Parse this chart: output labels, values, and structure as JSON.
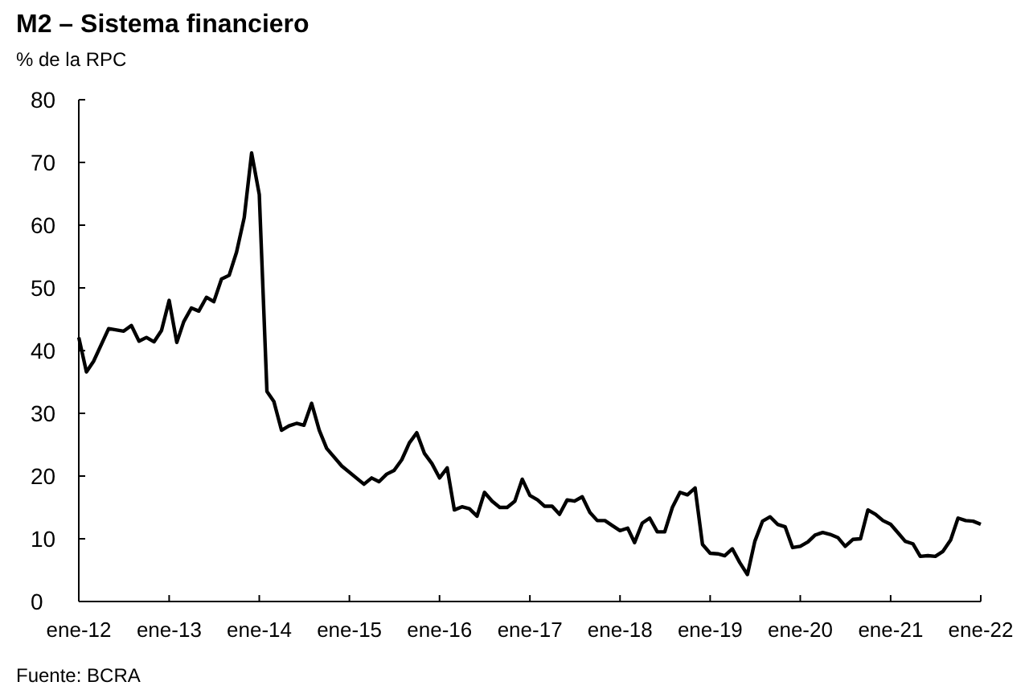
{
  "chart_data": {
    "type": "line",
    "title": "M2 – Sistema financiero",
    "ylabel": "% de la RPC",
    "annotations": [
      "Fuente: BCRA"
    ],
    "x": [
      "2012-01",
      "2012-02",
      "2012-03",
      "2012-05",
      "2012-07",
      "2012-08",
      "2012-09",
      "2012-10",
      "2012-11",
      "2012-12",
      "2013-01",
      "2013-02",
      "2013-03",
      "2013-04",
      "2013-05",
      "2013-06",
      "2013-07",
      "2013-08",
      "2013-09",
      "2013-10",
      "2013-11",
      "2013-12",
      "2014-01",
      "2014-02",
      "2014-03",
      "2014-04",
      "2014-05",
      "2014-06",
      "2014-07",
      "2014-08",
      "2014-09",
      "2014-10",
      "2014-12",
      "2015-03",
      "2015-04",
      "2015-05",
      "2015-06",
      "2015-07",
      "2015-08",
      "2015-09",
      "2015-10",
      "2015-11",
      "2015-12",
      "2016-01",
      "2016-02",
      "2016-03",
      "2016-04",
      "2016-05",
      "2016-06",
      "2016-07",
      "2016-08",
      "2016-09",
      "2016-10",
      "2016-11",
      "2016-12",
      "2017-01",
      "2017-02",
      "2017-03",
      "2017-04",
      "2017-05",
      "2017-06",
      "2017-07",
      "2017-08",
      "2017-09",
      "2017-10",
      "2017-11",
      "2017-12",
      "2018-01",
      "2018-02",
      "2018-03",
      "2018-04",
      "2018-05",
      "2018-06",
      "2018-07",
      "2018-08",
      "2018-09",
      "2018-10",
      "2018-11",
      "2018-12",
      "2019-01",
      "2019-02",
      "2019-03",
      "2019-04",
      "2019-05",
      "2019-06",
      "2019-07",
      "2019-08",
      "2019-09",
      "2019-10",
      "2019-11",
      "2019-12",
      "2020-01",
      "2020-02",
      "2020-03",
      "2020-04",
      "2020-05",
      "2020-06",
      "2020-07",
      "2020-08",
      "2020-09",
      "2020-10",
      "2020-11",
      "2020-12",
      "2021-01",
      "2021-02",
      "2021-03",
      "2021-04",
      "2021-05",
      "2021-06",
      "2021-07",
      "2021-08",
      "2021-09",
      "2021-10",
      "2021-11",
      "2021-12",
      "2022-01"
    ],
    "series": [
      {
        "color": "#000000",
        "values": [
          42.1,
          36.6,
          38.3,
          43.5,
          43.1,
          44,
          41.5,
          42.1,
          41.4,
          43.2,
          48,
          41.3,
          44.6,
          46.8,
          46.3,
          48.5,
          47.8,
          51.4,
          52,
          55.7,
          61.2,
          71.5,
          64.9,
          33.5,
          31.9,
          27.3,
          28,
          28.4,
          28.1,
          31.6,
          27.3,
          24.4,
          21.6,
          18.7,
          19.7,
          19.1,
          20.3,
          20.9,
          22.6,
          25.3,
          26.9,
          23.6,
          22,
          19.7,
          21.3,
          14.6,
          15.1,
          14.8,
          13.6,
          17.4,
          16,
          15,
          15,
          16,
          19.5,
          16.9,
          16.2,
          15.2,
          15.2,
          13.9,
          16.2,
          16,
          16.7,
          14.2,
          12.9,
          12.9,
          12.1,
          11.3,
          11.7,
          9.4,
          12.5,
          13.3,
          11.1,
          11.1,
          15,
          17.4,
          17,
          18.1,
          9.1,
          7.7,
          7.6,
          7.3,
          8.4,
          6.2,
          4.3,
          9.6,
          12.8,
          13.5,
          12.3,
          11.9,
          8.6,
          8.8,
          9.5,
          10.6,
          11,
          10.7,
          10.2,
          8.8,
          9.9,
          10,
          14.6,
          13.9,
          12.9,
          12.3,
          10.9,
          9.6,
          9.2,
          7.2,
          7.3,
          7.2,
          8,
          9.8,
          13.3,
          12.9,
          12.8,
          12.3
        ]
      }
    ],
    "xlim": [
      "2012-01",
      "2022-01"
    ],
    "xticks": [
      {
        "value": "2012-01",
        "label": "ene-12"
      },
      {
        "value": "2013-01",
        "label": "ene-13"
      },
      {
        "value": "2014-01",
        "label": "ene-14"
      },
      {
        "value": "2015-01",
        "label": "ene-15"
      },
      {
        "value": "2016-01",
        "label": "ene-16"
      },
      {
        "value": "2017-01",
        "label": "ene-17"
      },
      {
        "value": "2018-01",
        "label": "ene-18"
      },
      {
        "value": "2019-01",
        "label": "ene-19"
      },
      {
        "value": "2020-01",
        "label": "ene-20"
      },
      {
        "value": "2021-01",
        "label": "ene-21"
      },
      {
        "value": "2022-01",
        "label": "ene-22"
      }
    ],
    "ylim": [
      0,
      80
    ],
    "yticks": [
      0,
      10,
      20,
      30,
      40,
      50,
      60,
      70,
      80
    ],
    "grid": false,
    "marker": "none",
    "line_style": "solid"
  }
}
